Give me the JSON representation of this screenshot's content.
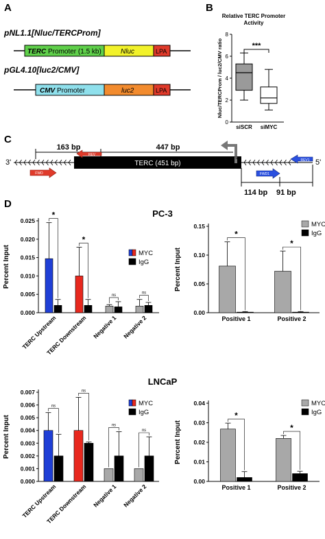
{
  "panels": {
    "A": {
      "letter": "A",
      "construct1": {
        "name": "pNL1.1[Nluc/TERCProm]",
        "promoter": "TERC",
        "promoter_rest": " Promoter (1.5 kb)",
        "gene": "Nluc",
        "lpa": "LPA"
      },
      "construct2": {
        "name": "pGL4.10[luc2/CMV]",
        "promoter": "CMV",
        "promoter_rest": " Promoter",
        "gene": "luc2",
        "lpa": "LPA"
      }
    },
    "B": {
      "letter": "B",
      "title": "Relative TERC Promoter Activity",
      "ylabel": "Nluc/TERCProm / luc2/CMV ratio",
      "sig": "***"
    },
    "C": {
      "letter": "C",
      "three_prime": "3'",
      "five_prime": "5'",
      "dist1": "163 bp",
      "dist2": "447 bp",
      "gene_label": "TERC (451 bp)",
      "tss": "TSS",
      "dist3": "114 bp",
      "dist4": "91 bp",
      "rev": "REV",
      "fwd": "FWD",
      "rev1": "REV1",
      "fwd1": "FWD1"
    },
    "D": {
      "letter": "D",
      "group1": "PC-3",
      "group2": "LNCaP"
    }
  },
  "colors": {
    "blue": "#1f3fd6",
    "red": "#e8281e",
    "black": "#000000",
    "gray": "#a8a8a8",
    "green": "#5fd04a",
    "yellow": "#f2f22a",
    "lpa": "#e03a2a",
    "cyan": "#8fe0ec",
    "orange": "#f28b2e"
  },
  "chart_data": [
    {
      "id": "B",
      "type": "box",
      "title": "Relative TERC Promoter Activity",
      "ylabel": "Nluc/TERCProm / luc2/CMV ratio",
      "ylim": [
        0,
        8
      ],
      "yticks": [
        0,
        2,
        4,
        6,
        8
      ],
      "categories": [
        "siSCR",
        "siMYC"
      ],
      "boxes": [
        {
          "name": "siSCR",
          "min": 2.0,
          "q1": 2.9,
          "median": 4.5,
          "q3": 5.3,
          "max": 6.3,
          "fill": "#9a9a9a"
        },
        {
          "name": "siMYC",
          "min": 1.1,
          "q1": 1.7,
          "median": 2.2,
          "q3": 3.2,
          "max": 4.8,
          "fill": "#ffffff"
        }
      ],
      "significance": "***"
    },
    {
      "id": "D-PC3-left",
      "type": "bar",
      "ylabel": "Percent Input",
      "ylim": [
        0,
        0.025
      ],
      "yticks": [
        "0.000",
        "0.005",
        "0.010",
        "0.015",
        "0.020",
        "0.025"
      ],
      "ytick_values": [
        0,
        0.005,
        0.01,
        0.015,
        0.02,
        0.025
      ],
      "categories": [
        "TERC Upstream",
        "TERC Downstream",
        "Negative 1",
        "Negative 2"
      ],
      "series": [
        {
          "name": "MYC",
          "values": [
            0.0147,
            0.01,
            0.0018,
            0.0018
          ],
          "errors": [
            0.0098,
            0.0078,
            0.0004,
            0.0018
          ],
          "fills": [
            "#1f3fd6",
            "#e8281e",
            "#a8a8a8",
            "#a8a8a8"
          ]
        },
        {
          "name": "IgG",
          "values": [
            0.002,
            0.002,
            0.0016,
            0.002
          ],
          "errors": [
            0.0016,
            0.0016,
            0.0014,
            0.0008
          ],
          "fills": [
            "#000000",
            "#000000",
            "#000000",
            "#000000"
          ]
        }
      ],
      "significance": [
        "*",
        "*",
        "ns",
        "ns"
      ],
      "legend": [
        "MYC",
        "IgG"
      ]
    },
    {
      "id": "D-PC3-right",
      "type": "bar",
      "ylabel": "Percent Input",
      "ylim": [
        0,
        0.15
      ],
      "yticks": [
        "0.00",
        "0.05",
        "0.10",
        "0.15"
      ],
      "ytick_values": [
        0,
        0.05,
        0.1,
        0.15
      ],
      "categories": [
        "Positive 1",
        "Positive 2"
      ],
      "series": [
        {
          "name": "MYC",
          "values": [
            0.081,
            0.072
          ],
          "errors": [
            0.042,
            0.035
          ],
          "fills": [
            "#a8a8a8",
            "#a8a8a8"
          ]
        },
        {
          "name": "IgG",
          "values": [
            0.001,
            0.001
          ],
          "errors": [
            0.001,
            0.001
          ],
          "fills": [
            "#000000",
            "#000000"
          ]
        }
      ],
      "significance": [
        "*",
        "*"
      ],
      "legend": [
        "MYC",
        "IgG"
      ]
    },
    {
      "id": "D-LNCaP-left",
      "type": "bar",
      "ylabel": "Percent Input",
      "ylim": [
        0,
        0.007
      ],
      "yticks": [
        "0.000",
        "0.001",
        "0.002",
        "0.003",
        "0.004",
        "0.005",
        "0.006",
        "0.007"
      ],
      "ytick_values": [
        0,
        0.001,
        0.002,
        0.003,
        0.004,
        0.005,
        0.006,
        0.007
      ],
      "categories": [
        "TERC Upstream",
        "TERC Downstream",
        "Negative 1",
        "Negative 2"
      ],
      "series": [
        {
          "name": "MYC",
          "values": [
            0.004,
            0.004,
            0.001,
            0.001
          ],
          "errors": [
            0.0014,
            0.0026,
            0.0,
            0.0
          ],
          "fills": [
            "#1f3fd6",
            "#e8281e",
            "#a8a8a8",
            "#a8a8a8"
          ]
        },
        {
          "name": "IgG",
          "values": [
            0.002,
            0.003,
            0.002,
            0.002
          ],
          "errors": [
            0.0017,
            0.0001,
            0.0019,
            0.0015
          ],
          "fills": [
            "#000000",
            "#000000",
            "#000000",
            "#000000"
          ]
        }
      ],
      "significance": [
        "ns",
        "ns",
        "ns",
        "ns"
      ],
      "legend": [
        "MYC",
        "IgG"
      ]
    },
    {
      "id": "D-LNCaP-right",
      "type": "bar",
      "ylabel": "Percent Input",
      "ylim": [
        0,
        0.04
      ],
      "yticks": [
        "0.00",
        "0.01",
        "0.02",
        "0.03",
        "0.04"
      ],
      "ytick_values": [
        0,
        0.01,
        0.02,
        0.03,
        0.04
      ],
      "categories": [
        "Positive 1",
        "Positive 2"
      ],
      "series": [
        {
          "name": "MYC",
          "values": [
            0.0268,
            0.022
          ],
          "errors": [
            0.003,
            0.0015
          ],
          "fills": [
            "#a8a8a8",
            "#a8a8a8"
          ]
        },
        {
          "name": "IgG",
          "values": [
            0.002,
            0.004
          ],
          "errors": [
            0.003,
            0.0012
          ],
          "fills": [
            "#000000",
            "#000000"
          ]
        }
      ],
      "significance": [
        "*",
        "*"
      ],
      "legend": [
        "MYC",
        "IgG"
      ]
    }
  ]
}
